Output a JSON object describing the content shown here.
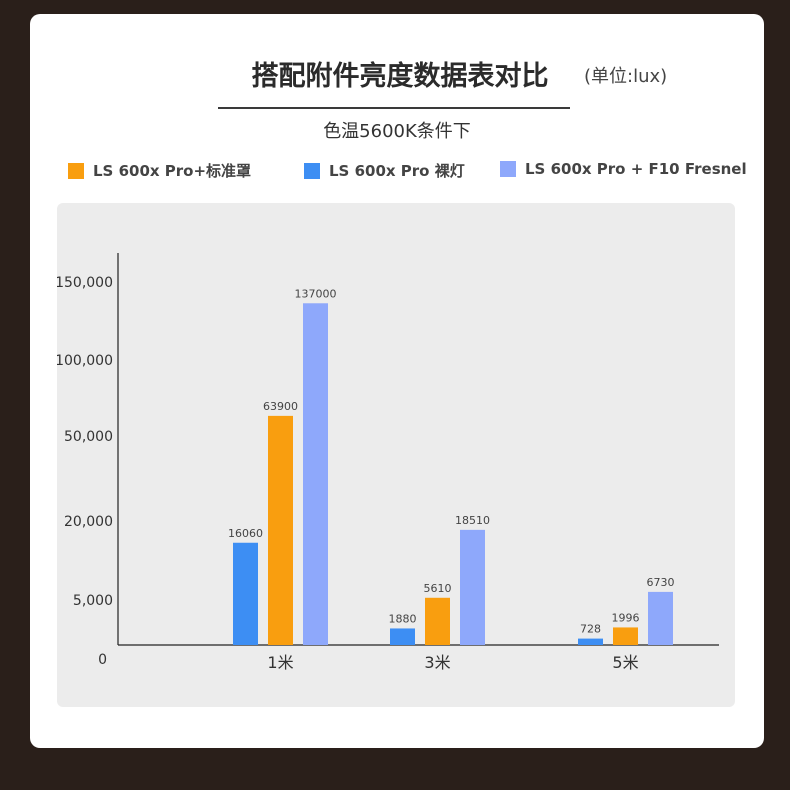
{
  "title": "搭配附件亮度数据表对比",
  "unit": "(单位:lux)",
  "subtitle": "色温5600K条件下",
  "colors": {
    "background": "#2a1f1a",
    "card": "#ffffff",
    "panel": "#ececec"
  },
  "chart_data": {
    "type": "bar",
    "categories": [
      "1米",
      "3米",
      "5米"
    ],
    "series": [
      {
        "name": "LS 600x Pro 裸灯",
        "color": "#3d8ef3",
        "values": [
          16060,
          1880,
          728
        ]
      },
      {
        "name": "LS 600x Pro+标准罩",
        "color": "#f99e0f",
        "values": [
          63900,
          5610,
          1996
        ]
      },
      {
        "name": "LS 600x Pro + F10 Fresnel",
        "color": "#8ea8fb",
        "values": [
          137000,
          18510,
          6730
        ]
      }
    ],
    "legend_order": [
      1,
      0,
      2
    ],
    "y_ticks": [
      "0",
      "5,000",
      "20,000",
      "50,000",
      "100,000",
      "150,000"
    ],
    "y_tick_values": [
      0,
      5000,
      20000,
      50000,
      100000,
      150000
    ],
    "scale": "non-linear",
    "legend_position": "top",
    "grid": false,
    "xlabel": "",
    "ylabel": ""
  }
}
